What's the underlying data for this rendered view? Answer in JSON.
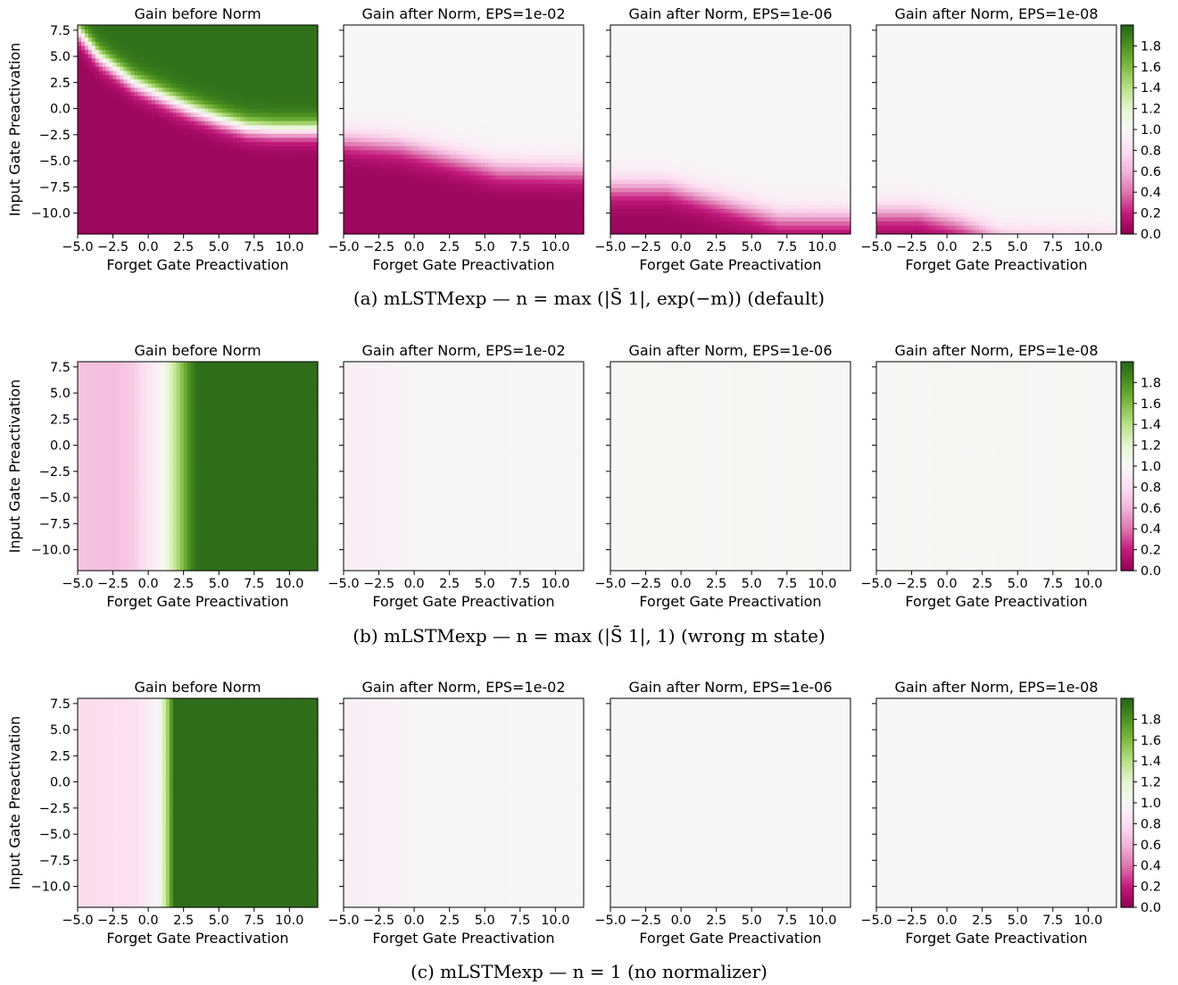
{
  "figure": {
    "colorbar_ticks": [
      "0.0",
      "0.2",
      "0.4",
      "0.6",
      "0.8",
      "1.0",
      "1.2",
      "1.4",
      "1.6",
      "1.8"
    ],
    "colormap": "PiYG",
    "colormap_stops": [
      "#8e0152",
      "#c51b7d",
      "#de77ae",
      "#f1b6da",
      "#fde0ef",
      "#f7f7f7",
      "#e6f5d0",
      "#b8e186",
      "#7fbc41",
      "#4d9221",
      "#276419"
    ]
  },
  "chart_data": [
    {
      "row": "a",
      "caption": "(a) mLSTMexp — n = max (|S̄ 1|, exp(−m)) (default)",
      "panels": [
        {
          "type": "heatmap",
          "title": "Gain before Norm",
          "xlabel": "Forget Gate Preactivation",
          "ylabel": "Input Gate Preactivation",
          "xlim": [
            -5,
            12
          ],
          "ylim": [
            -12,
            8
          ],
          "xticks": [
            "−5.0",
            "−2.5",
            "0.0",
            "2.5",
            "5.0",
            "7.5",
            "10.0"
          ],
          "yticks": [
            "7.5",
            "5.0",
            "2.5",
            "0.0",
            "−2.5",
            "−5.0",
            "−7.5",
            "−10.0"
          ],
          "clim": [
            0,
            2
          ],
          "pattern": {
            "kind": "boundary",
            "boundary": [
              [
                -5,
                7.5
              ],
              [
                -3.5,
                5
              ],
              [
                -1,
                2.5
              ],
              [
                1,
                1.2
              ],
              [
                3,
                0
              ],
              [
                5,
                -1
              ],
              [
                7,
                -1.8
              ],
              [
                9,
                -2
              ],
              [
                12,
                -2
              ]
            ],
            "above": 1.95,
            "below": 0.05,
            "width": 1.2
          }
        },
        {
          "type": "heatmap",
          "title": "Gain after Norm, EPS=1e-02",
          "xlabel": "Forget Gate Preactivation",
          "ylabel": "",
          "xlim": [
            -5,
            12
          ],
          "ylim": [
            -12,
            8
          ],
          "xticks": [
            "−5.0",
            "−2.5",
            "0.0",
            "2.5",
            "5.0",
            "7.5",
            "10.0"
          ],
          "yticks": [],
          "clim": [
            0,
            2
          ],
          "pattern": {
            "kind": "boundary",
            "boundary": [
              [
                -5,
                -3
              ],
              [
                -1,
                -3.5
              ],
              [
                2,
                -4.5
              ],
              [
                6,
                -5.8
              ],
              [
                12,
                -6
              ]
            ],
            "above": 1.0,
            "below": 0.05,
            "width": 1.6
          }
        },
        {
          "type": "heatmap",
          "title": "Gain after Norm, EPS=1e-06",
          "xlabel": "Forget Gate Preactivation",
          "ylabel": "",
          "xlim": [
            -5,
            12
          ],
          "ylim": [
            -12,
            8
          ],
          "xticks": [
            "−5.0",
            "−2.5",
            "0.0",
            "2.5",
            "5.0",
            "7.5",
            "10.0"
          ],
          "yticks": [],
          "clim": [
            0,
            2
          ],
          "pattern": {
            "kind": "boundary",
            "boundary": [
              [
                -5,
                -7.5
              ],
              [
                -1,
                -7.5
              ],
              [
                3,
                -9
              ],
              [
                7,
                -10.5
              ],
              [
                12,
                -10.5
              ]
            ],
            "above": 1.0,
            "below": 0.05,
            "width": 1.6
          }
        },
        {
          "type": "heatmap",
          "title": "Gain after Norm, EPS=1e-08",
          "xlabel": "Forget Gate Preactivation",
          "ylabel": "",
          "xlim": [
            -5,
            12
          ],
          "ylim": [
            -12,
            8
          ],
          "xticks": [
            "−5.0",
            "−2.5",
            "0.0",
            "2.5",
            "5.0",
            "7.5",
            "10.0"
          ],
          "yticks": [],
          "clim": [
            0,
            2
          ],
          "pattern": {
            "kind": "boundary",
            "boundary": [
              [
                -5,
                -10
              ],
              [
                -2,
                -10
              ],
              [
                1,
                -11
              ],
              [
                4,
                -12.5
              ],
              [
                12,
                -13
              ]
            ],
            "above": 1.0,
            "below": 0.05,
            "width": 1.6
          }
        }
      ]
    },
    {
      "row": "b",
      "caption": "(b) mLSTMexp — n = max (|S̄ 1|, 1) (wrong m state)",
      "panels": [
        {
          "type": "heatmap",
          "title": "Gain before Norm",
          "xlabel": "Forget Gate Preactivation",
          "ylabel": "Input Gate Preactivation",
          "xlim": [
            -5,
            12
          ],
          "ylim": [
            -12,
            8
          ],
          "xticks": [
            "−5.0",
            "−2.5",
            "0.0",
            "2.5",
            "5.0",
            "7.5",
            "10.0"
          ],
          "yticks": [
            "7.5",
            "5.0",
            "2.5",
            "0.0",
            "−2.5",
            "−5.0",
            "−7.5",
            "−10.0"
          ],
          "clim": [
            0,
            2
          ],
          "pattern": {
            "kind": "vertical",
            "columns": [
              [
                -5,
                0.66
              ],
              [
                -2.5,
                0.64
              ],
              [
                -1,
                0.7
              ],
              [
                0,
                0.85
              ],
              [
                1,
                1.0
              ],
              [
                2,
                1.4
              ],
              [
                3,
                1.85
              ],
              [
                3.5,
                1.96
              ],
              [
                12,
                1.96
              ]
            ]
          }
        },
        {
          "type": "heatmap",
          "title": "Gain after Norm, EPS=1e-02",
          "xlabel": "Forget Gate Preactivation",
          "ylabel": "",
          "xlim": [
            -5,
            12
          ],
          "ylim": [
            -12,
            8
          ],
          "xticks": [
            "−5.0",
            "−2.5",
            "0.0",
            "2.5",
            "5.0",
            "7.5",
            "10.0"
          ],
          "yticks": [],
          "clim": [
            0,
            2
          ],
          "pattern": {
            "kind": "vertical",
            "columns": [
              [
                -5,
                0.93
              ],
              [
                -2.5,
                0.94
              ],
              [
                0,
                0.99
              ],
              [
                12,
                1.0
              ]
            ]
          }
        },
        {
          "type": "heatmap",
          "title": "Gain after Norm, EPS=1e-06",
          "xlabel": "Forget Gate Preactivation",
          "ylabel": "",
          "xlim": [
            -5,
            12
          ],
          "ylim": [
            -12,
            8
          ],
          "xticks": [
            "−5.0",
            "−2.5",
            "0.0",
            "2.5",
            "5.0",
            "7.5",
            "10.0"
          ],
          "yticks": [],
          "clim": [
            0,
            2
          ],
          "pattern": {
            "kind": "vertical",
            "columns": [
              [
                -5,
                1.0
              ],
              [
                0,
                1.01
              ],
              [
                2,
                1.0
              ],
              [
                4,
                1.01
              ],
              [
                12,
                1.0
              ]
            ]
          }
        },
        {
          "type": "heatmap",
          "title": "Gain after Norm, EPS=1e-08",
          "xlabel": "Forget Gate Preactivation",
          "ylabel": "",
          "xlim": [
            -5,
            12
          ],
          "ylim": [
            -12,
            8
          ],
          "xticks": [
            "−5.0",
            "−2.5",
            "0.0",
            "2.5",
            "5.0",
            "7.5",
            "10.0"
          ],
          "yticks": [],
          "clim": [
            0,
            2
          ],
          "pattern": {
            "kind": "vertical",
            "columns": [
              [
                -5,
                1.0
              ],
              [
                0,
                1.01
              ],
              [
                2,
                1.0
              ],
              [
                4,
                1.01
              ],
              [
                12,
                1.0
              ]
            ]
          }
        }
      ]
    },
    {
      "row": "c",
      "caption": "(c) mLSTMexp — n = 1 (no normalizer)",
      "panels": [
        {
          "type": "heatmap",
          "title": "Gain before Norm",
          "xlabel": "Forget Gate Preactivation",
          "ylabel": "Input Gate Preactivation",
          "xlim": [
            -5,
            12
          ],
          "ylim": [
            -12,
            8
          ],
          "xticks": [
            "−5.0",
            "−2.5",
            "0.0",
            "2.5",
            "5.0",
            "7.5",
            "10.0"
          ],
          "yticks": [
            "7.5",
            "5.0",
            "2.5",
            "0.0",
            "−2.5",
            "−5.0",
            "−7.5",
            "−10.0"
          ],
          "clim": [
            0,
            2
          ],
          "pattern": {
            "kind": "vertical",
            "columns": [
              [
                -5,
                0.78
              ],
              [
                -1,
                0.8
              ],
              [
                0,
                0.9
              ],
              [
                0.7,
                1.0
              ],
              [
                1.3,
                1.4
              ],
              [
                1.8,
                1.96
              ],
              [
                12,
                1.96
              ]
            ]
          }
        },
        {
          "type": "heatmap",
          "title": "Gain after Norm, EPS=1e-02",
          "xlabel": "Forget Gate Preactivation",
          "ylabel": "",
          "xlim": [
            -5,
            12
          ],
          "ylim": [
            -12,
            8
          ],
          "xticks": [
            "−5.0",
            "−2.5",
            "0.0",
            "2.5",
            "5.0",
            "7.5",
            "10.0"
          ],
          "yticks": [],
          "clim": [
            0,
            2
          ],
          "pattern": {
            "kind": "vertical",
            "columns": [
              [
                -5,
                0.93
              ],
              [
                -2,
                0.95
              ],
              [
                0,
                0.99
              ],
              [
                12,
                1.0
              ]
            ]
          }
        },
        {
          "type": "heatmap",
          "title": "Gain after Norm, EPS=1e-06",
          "xlabel": "Forget Gate Preactivation",
          "ylabel": "",
          "xlim": [
            -5,
            12
          ],
          "ylim": [
            -12,
            8
          ],
          "xticks": [
            "−5.0",
            "−2.5",
            "0.0",
            "2.5",
            "5.0",
            "7.5",
            "10.0"
          ],
          "yticks": [],
          "clim": [
            0,
            2
          ],
          "pattern": {
            "kind": "vertical",
            "columns": [
              [
                -5,
                1.0
              ],
              [
                12,
                1.0
              ]
            ]
          }
        },
        {
          "type": "heatmap",
          "title": "Gain after Norm, EPS=1e-08",
          "xlabel": "Forget Gate Preactivation",
          "ylabel": "",
          "xlim": [
            -5,
            12
          ],
          "ylim": [
            -12,
            8
          ],
          "xticks": [
            "−5.0",
            "−2.5",
            "0.0",
            "2.5",
            "5.0",
            "7.5",
            "10.0"
          ],
          "yticks": [],
          "clim": [
            0,
            2
          ],
          "pattern": {
            "kind": "vertical",
            "columns": [
              [
                -5,
                1.0
              ],
              [
                12,
                1.0
              ]
            ]
          }
        }
      ]
    }
  ]
}
